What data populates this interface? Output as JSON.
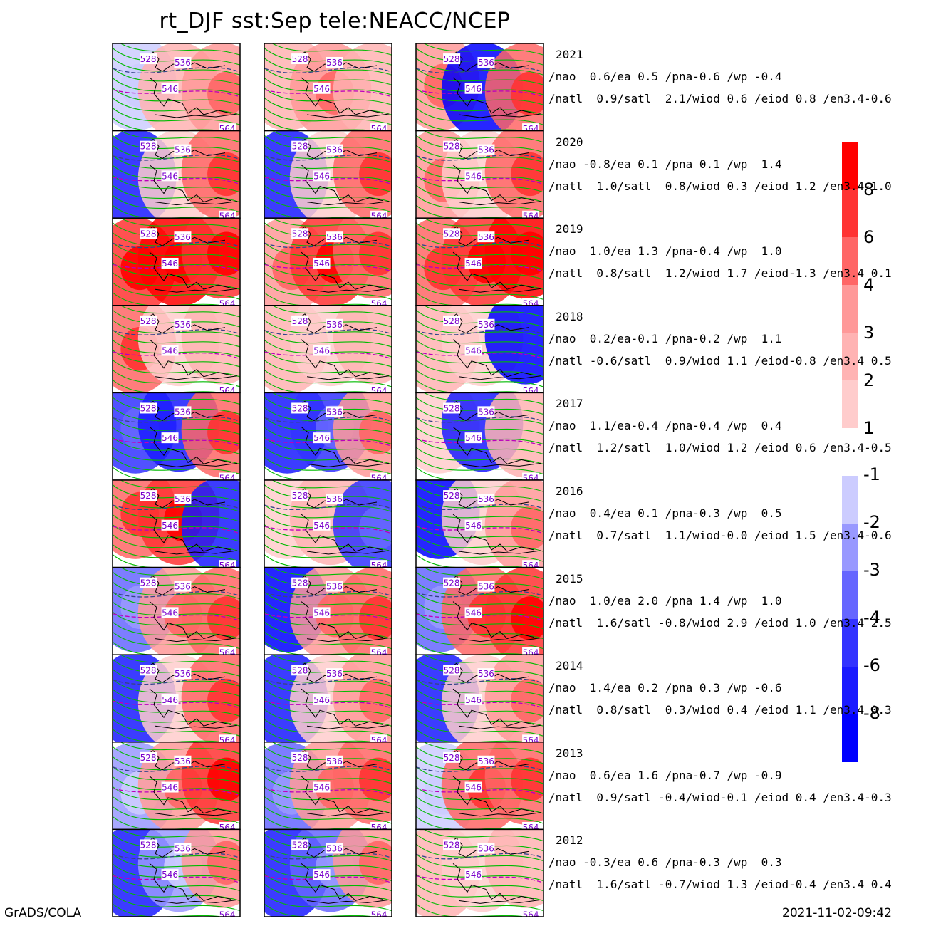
{
  "title": "rt_DJF  sst:Sep  tele:NEACC/NCEP",
  "footer": {
    "left": "GrADS/COLA",
    "right": "2021-11-02-09:42"
  },
  "contour_labels": [
    "528",
    "536",
    "546",
    "564"
  ],
  "colorbar_positive": {
    "labels": [
      "8",
      "6",
      "4",
      "3",
      "2",
      "1"
    ],
    "colors": [
      "#ff0000",
      "#ff3333",
      "#ff6666",
      "#ff9999",
      "#ffb3b3",
      "#ffcccc"
    ]
  },
  "colorbar_negative": {
    "labels": [
      "-1",
      "-2",
      "-3",
      "-4",
      "-6",
      "-8"
    ],
    "colors": [
      "#ccccff",
      "#9999ff",
      "#6666ff",
      "#3333ff",
      "#1a1aff",
      "#0000ff"
    ]
  },
  "contour_colors": {
    "height": "#00bb00",
    "dashed_blue": "#334488",
    "dashed_purple": "#bb00bb"
  },
  "years": [
    {
      "year": "2021",
      "line1": "/nao  0.6/ea 0.5 /pna-0.6 /wp -0.4",
      "line2": "/natl  0.9/satl  2.1/wiod 0.6 /eiod 0.8 /en3.4-0.6"
    },
    {
      "year": "2020",
      "line1": "/nao -0.8/ea 0.1 /pna 0.1 /wp  1.4",
      "line2": "/natl  1.0/satl  0.8/wiod 0.3 /eiod 1.2 /en3.4-1.0"
    },
    {
      "year": "2019",
      "line1": "/nao  1.0/ea 1.3 /pna-0.4 /wp  1.0",
      "line2": "/natl  0.8/satl  1.2/wiod 1.7 /eiod-1.3 /en3.4 0.1"
    },
    {
      "year": "2018",
      "line1": "/nao  0.2/ea-0.1 /pna-0.2 /wp  1.1",
      "line2": "/natl -0.6/satl  0.9/wiod 1.1 /eiod-0.8 /en3.4 0.5"
    },
    {
      "year": "2017",
      "line1": "/nao  1.1/ea-0.4 /pna-0.4 /wp  0.4",
      "line2": "/natl  1.2/satl  1.0/wiod 1.2 /eiod 0.6 /en3.4-0.5"
    },
    {
      "year": "2016",
      "line1": "/nao  0.4/ea 0.1 /pna-0.3 /wp  0.5",
      "line2": "/natl  0.7/satl  1.1/wiod-0.0 /eiod 1.5 /en3.4-0.6"
    },
    {
      "year": "2015",
      "line1": "/nao  1.0/ea 2.0 /pna 1.4 /wp  1.0",
      "line2": "/natl  1.6/satl -0.8/wiod 2.9 /eiod 1.0 /en3.4 2.5"
    },
    {
      "year": "2014",
      "line1": "/nao  1.4/ea 0.2 /pna 0.3 /wp -0.6",
      "line2": "/natl  0.8/satl  0.3/wiod 0.4 /eiod 1.1 /en3.4 0.3"
    },
    {
      "year": "2013",
      "line1": "/nao  0.6/ea 1.6 /pna-0.7 /wp -0.9",
      "line2": "/natl  0.9/satl -0.4/wiod-0.1 /eiod 0.4 /en3.4-0.3"
    },
    {
      "year": "2012",
      "line1": "/nao -0.3/ea 0.6 /pna-0.3 /wp  0.3",
      "line2": "/natl  1.6/satl -0.7/wiod 1.3 /eiod-0.4 /en3.4 0.4"
    }
  ],
  "anomaly_grid": [
    [
      [
        -8,
        2,
        3
      ],
      [
        2,
        3,
        2
      ],
      [
        3,
        -1,
        4
      ]
    ],
    [
      [
        -2,
        1,
        4
      ],
      [
        -2,
        1,
        4
      ],
      [
        3,
        1,
        4
      ]
    ],
    [
      [
        6,
        8,
        6
      ],
      [
        3,
        6,
        4
      ],
      [
        4,
        6,
        8
      ]
    ],
    [
      [
        4,
        1,
        2
      ],
      [
        2,
        1,
        2
      ],
      [
        2,
        1,
        -1
      ]
    ],
    [
      [
        -3,
        -2,
        4
      ],
      [
        -2,
        -3,
        3
      ],
      [
        1,
        -2,
        2
      ]
    ],
    [
      [
        4,
        6,
        -2
      ],
      [
        1,
        2,
        -3
      ],
      [
        -1,
        1,
        3
      ]
    ],
    [
      [
        -4,
        3,
        4
      ],
      [
        -1,
        3,
        4
      ],
      [
        -4,
        4,
        6
      ]
    ],
    [
      [
        -2,
        1,
        4
      ],
      [
        -2,
        1,
        3
      ],
      [
        -2,
        1,
        3
      ]
    ],
    [
      [
        -6,
        3,
        6
      ],
      [
        -4,
        3,
        4
      ],
      [
        -8,
        4,
        4
      ]
    ],
    [
      [
        -2,
        -6,
        3
      ],
      [
        -2,
        -4,
        3
      ],
      [
        2,
        1,
        2
      ]
    ]
  ]
}
